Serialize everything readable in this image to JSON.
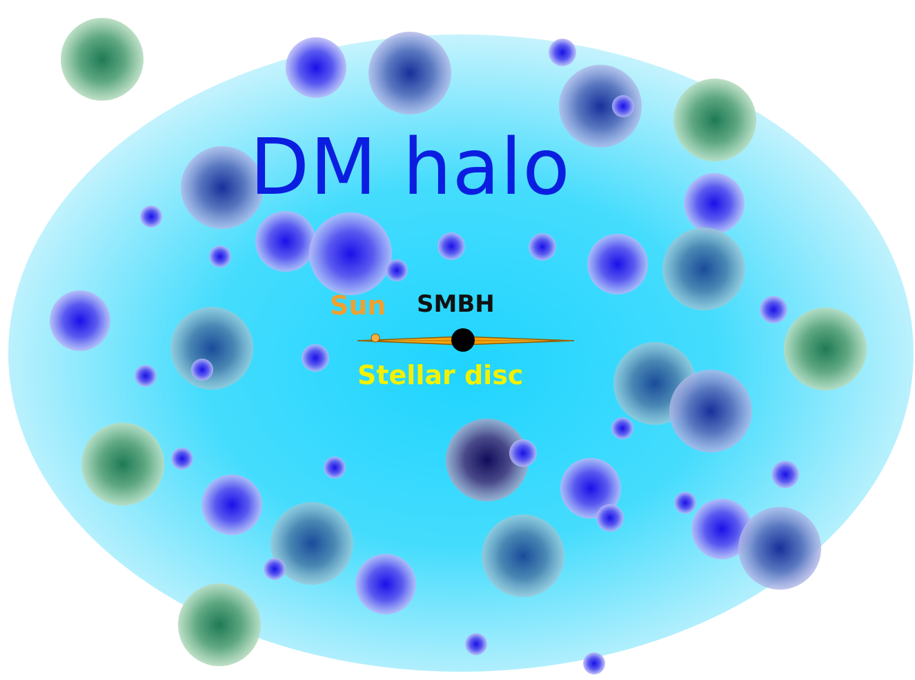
{
  "diagram": {
    "title": "DM halo",
    "sun_label": "Sun",
    "smbh_label": "SMBH",
    "disc_label": "Stellar disc"
  },
  "colors": {
    "halo_center": "#1fd4ff",
    "halo_edge": "#c6f3fd",
    "subhalo_blue": "#1a10e8",
    "subhalo_navy": "#1a2a8a",
    "subhalo_green": "#2a8a5a",
    "disc": "#f7a400",
    "smbh": "#000000"
  }
}
